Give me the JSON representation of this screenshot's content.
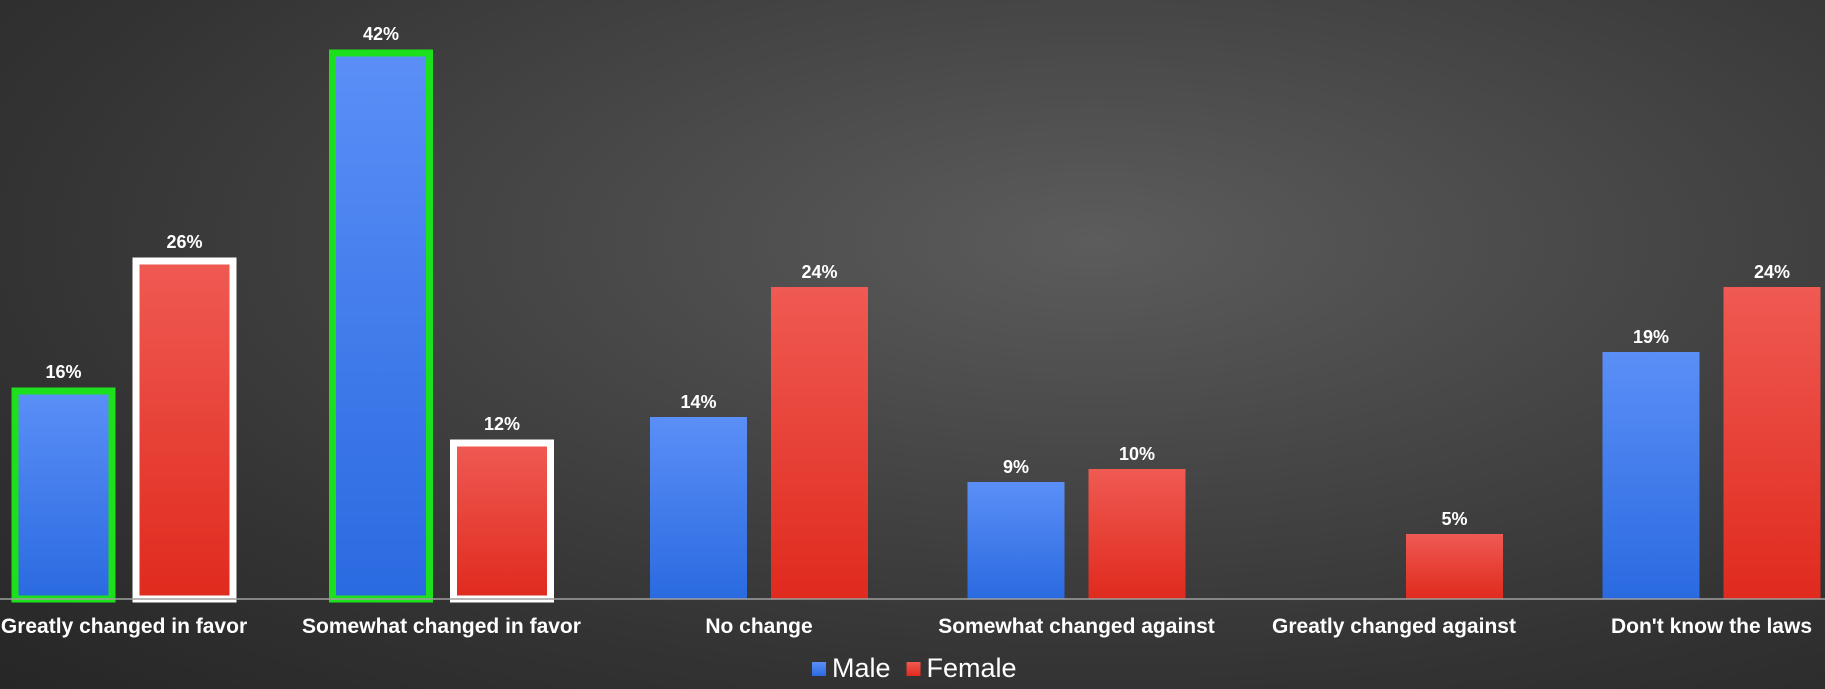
{
  "chart_data": {
    "type": "bar",
    "categories": [
      "Greatly changed in favor",
      "Somewhat changed in favor",
      "No change",
      "Somewhat changed against",
      "Greatly changed against",
      "Don't know the laws"
    ],
    "series": [
      {
        "name": "Male",
        "color": "#3f7ff0",
        "values": [
          16,
          42,
          14,
          9,
          null,
          19
        ],
        "labels": [
          "16%",
          "42%",
          "14%",
          "9%",
          "",
          "19%"
        ]
      },
      {
        "name": "Female",
        "color": "#e8372a",
        "values": [
          26,
          12,
          24,
          10,
          5,
          24
        ],
        "labels": [
          "26%",
          "12%",
          "24%",
          "10%",
          "5%",
          "24%"
        ]
      }
    ],
    "highlights": [
      {
        "series": 0,
        "category": 0,
        "outline": "#1de01d"
      },
      {
        "series": 0,
        "category": 1,
        "outline": "#1de01d"
      },
      {
        "series": 1,
        "category": 0,
        "outline": "#ffffff"
      },
      {
        "series": 1,
        "category": 1,
        "outline": "#ffffff"
      }
    ],
    "legend_position": "bottom",
    "ylim": [
      0,
      42
    ],
    "grid": false,
    "title": "",
    "xlabel": "",
    "ylabel": ""
  }
}
